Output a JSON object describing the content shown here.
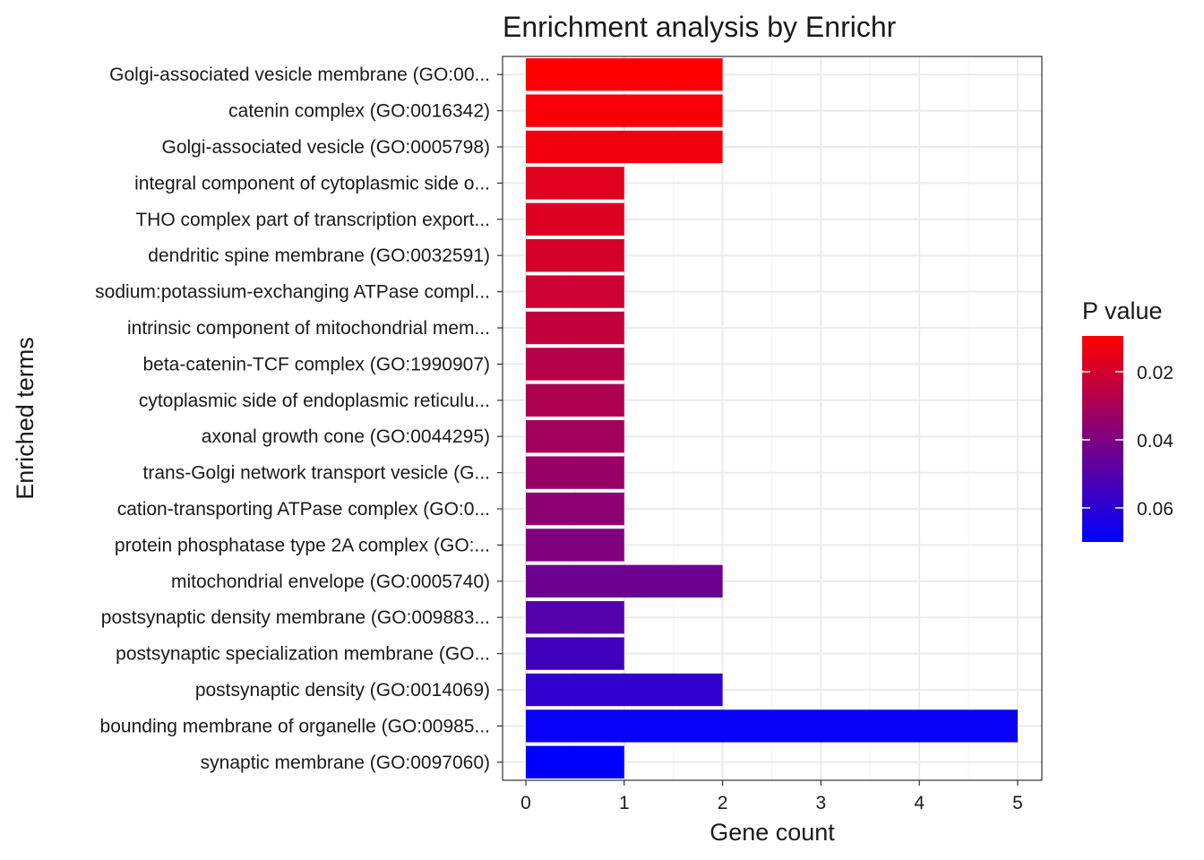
{
  "chart_data": {
    "type": "bar",
    "orientation": "horizontal",
    "title": "Enrichment analysis by Enrichr",
    "xlabel": "Gene count",
    "ylabel": "Enriched terms",
    "xlim": [
      0,
      5.25
    ],
    "x_ticks": [
      "0",
      "1",
      "2",
      "3",
      "4",
      "5"
    ],
    "grid": true,
    "categories": [
      "Golgi-associated vesicle membrane (GO:00...",
      "catenin complex (GO:0016342)",
      "Golgi-associated vesicle (GO:0005798)",
      "integral component of cytoplasmic side o...",
      "THO complex part of transcription export...",
      "dendritic spine membrane (GO:0032591)",
      "sodium:potassium-exchanging ATPase compl...",
      "intrinsic component of mitochondrial mem...",
      "beta-catenin-TCF complex (GO:1990907)",
      "cytoplasmic side of endoplasmic reticulu...",
      "axonal growth cone (GO:0044295)",
      "trans-Golgi network transport vesicle (G...",
      "cation-transporting ATPase complex (GO:0...",
      "protein phosphatase type 2A complex (GO:...",
      "mitochondrial envelope (GO:0005740)",
      "postsynaptic density membrane (GO:009883...",
      "postsynaptic specialization membrane (GO...",
      "postsynaptic density (GO:0014069)",
      "bounding membrane of organelle (GO:00985...",
      "synaptic membrane (GO:0097060)"
    ],
    "values": [
      2,
      2,
      2,
      1,
      1,
      1,
      1,
      1,
      1,
      1,
      1,
      1,
      1,
      1,
      2,
      1,
      1,
      2,
      5,
      1
    ],
    "p_values": [
      0.01,
      0.011,
      0.0125,
      0.0165,
      0.0175,
      0.0195,
      0.0215,
      0.024,
      0.0265,
      0.029,
      0.0315,
      0.034,
      0.0365,
      0.0395,
      0.044,
      0.05,
      0.0545,
      0.0585,
      0.068,
      0.07
    ],
    "legend": {
      "title": "P value",
      "position": "right",
      "range": [
        0.0095,
        0.07
      ],
      "ticks": [
        0.02,
        0.04,
        0.06
      ],
      "tick_labels": [
        "0.02",
        "0.04",
        "0.06"
      ],
      "low_color": "#ff0000",
      "high_color": "#0000ff"
    }
  }
}
